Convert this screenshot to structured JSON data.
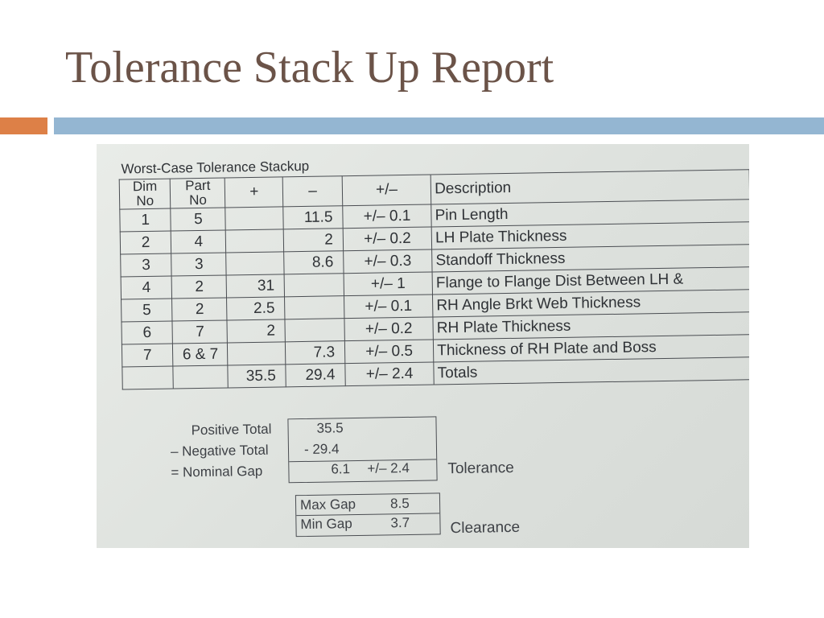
{
  "slide": {
    "title": "Tolerance Stack Up Report",
    "colors": {
      "title": "#6b5348",
      "accent_bar": "#dd8047",
      "main_bar": "#94b6d2"
    }
  },
  "worksheet": {
    "title": "Worst-Case Tolerance Stackup",
    "headers": {
      "dim_no": [
        "Dim",
        "No"
      ],
      "part_no": [
        "Part",
        "No"
      ],
      "plus": "+",
      "minus": "–",
      "tol": "+/–",
      "description": "Description"
    },
    "rows": [
      {
        "dim": "1",
        "part": "5",
        "plus": "",
        "minus": "11.5",
        "tol": "+/– 0.1",
        "desc": "Pin Length"
      },
      {
        "dim": "2",
        "part": "4",
        "plus": "",
        "minus": "2",
        "tol": "+/– 0.2",
        "desc": "LH Plate Thickness"
      },
      {
        "dim": "3",
        "part": "3",
        "plus": "",
        "minus": "8.6",
        "tol": "+/– 0.3",
        "desc": "Standoff Thickness"
      },
      {
        "dim": "4",
        "part": "2",
        "plus": "31",
        "minus": "",
        "tol": "+/– 1",
        "desc": "Flange to Flange Dist Between LH &"
      },
      {
        "dim": "5",
        "part": "2",
        "plus": "2.5",
        "minus": "",
        "tol": "+/– 0.1",
        "desc": "RH Angle Brkt Web Thickness"
      },
      {
        "dim": "6",
        "part": "7",
        "plus": "2",
        "minus": "",
        "tol": "+/– 0.2",
        "desc": "RH Plate Thickness"
      },
      {
        "dim": "7",
        "part": "6 & 7",
        "plus": "",
        "minus": "7.3",
        "tol": "+/– 0.5",
        "desc": "Thickness of RH Plate and Boss"
      }
    ],
    "totals_row": {
      "plus": "35.5",
      "minus": "29.4",
      "tol": "+/– 2.4",
      "desc": "Totals"
    },
    "summary": {
      "positive_label": "Positive Total",
      "positive_value": "35.5",
      "negative_label": "– Negative Total",
      "negative_value": "- 29.4",
      "nominal_label": "= Nominal Gap",
      "nominal_value": "6.1",
      "nominal_tol": "+/– 2.4",
      "tolerance_label": "Tolerance"
    },
    "gap": {
      "max_label": "Max Gap",
      "max_value": "8.5",
      "min_label": "Min Gap",
      "min_value": "3.7",
      "clearance_label": "Clearance"
    }
  }
}
